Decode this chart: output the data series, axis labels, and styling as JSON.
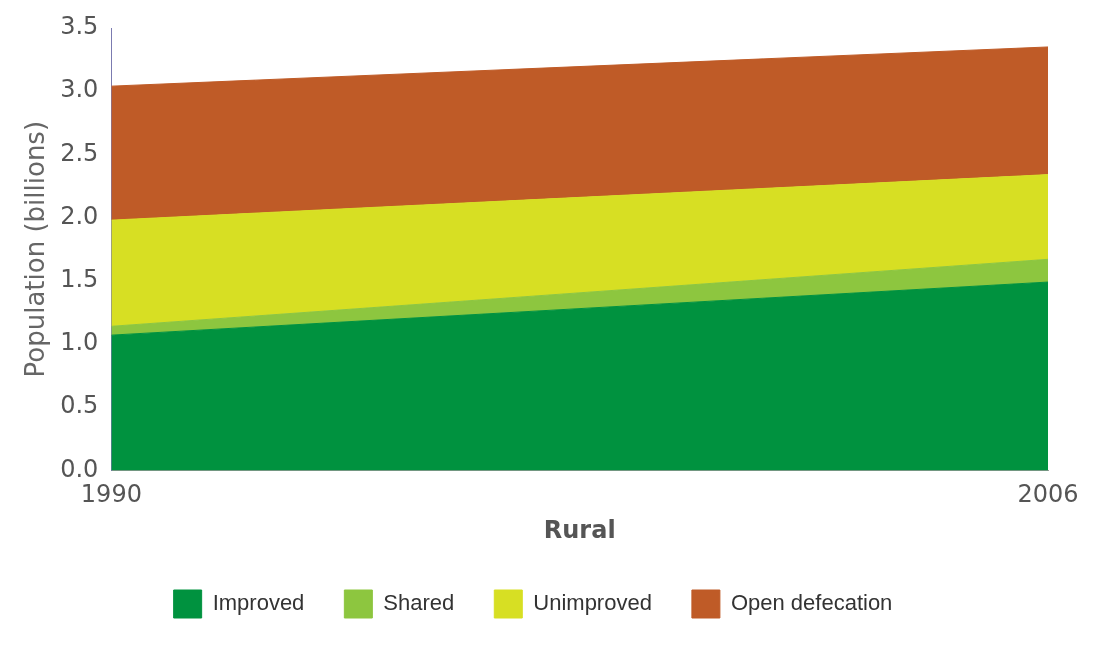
{
  "chart_data": {
    "type": "area",
    "stacked": true,
    "xlabel": "Rural",
    "ylabel": "Population (billions)",
    "x": [
      1990,
      2006
    ],
    "xlim": [
      1990,
      2006
    ],
    "xticks": [
      1990,
      2006
    ],
    "ylim": [
      0,
      3.5
    ],
    "yticks": [
      {
        "value": 0,
        "label": "0.0"
      },
      0.5,
      {
        "value": 1,
        "label": "1.0"
      },
      1.5,
      {
        "value": 2,
        "label": "2.0"
      },
      2.5,
      {
        "value": 3,
        "label": "3.0"
      },
      3.5
    ],
    "grid": false,
    "legend": "bottom",
    "series": [
      {
        "name": "Improved",
        "color": "#00923f",
        "values": [
          1.07,
          1.49
        ]
      },
      {
        "name": "Shared",
        "color": "#8dc63f",
        "values": [
          0.07,
          0.18
        ]
      },
      {
        "name": "Unimproved",
        "color": "#d7df23",
        "values": [
          0.84,
          0.67
        ]
      },
      {
        "name": "Open defecation",
        "color": "#bf5b27",
        "values": [
          1.06,
          1.01
        ]
      }
    ]
  }
}
